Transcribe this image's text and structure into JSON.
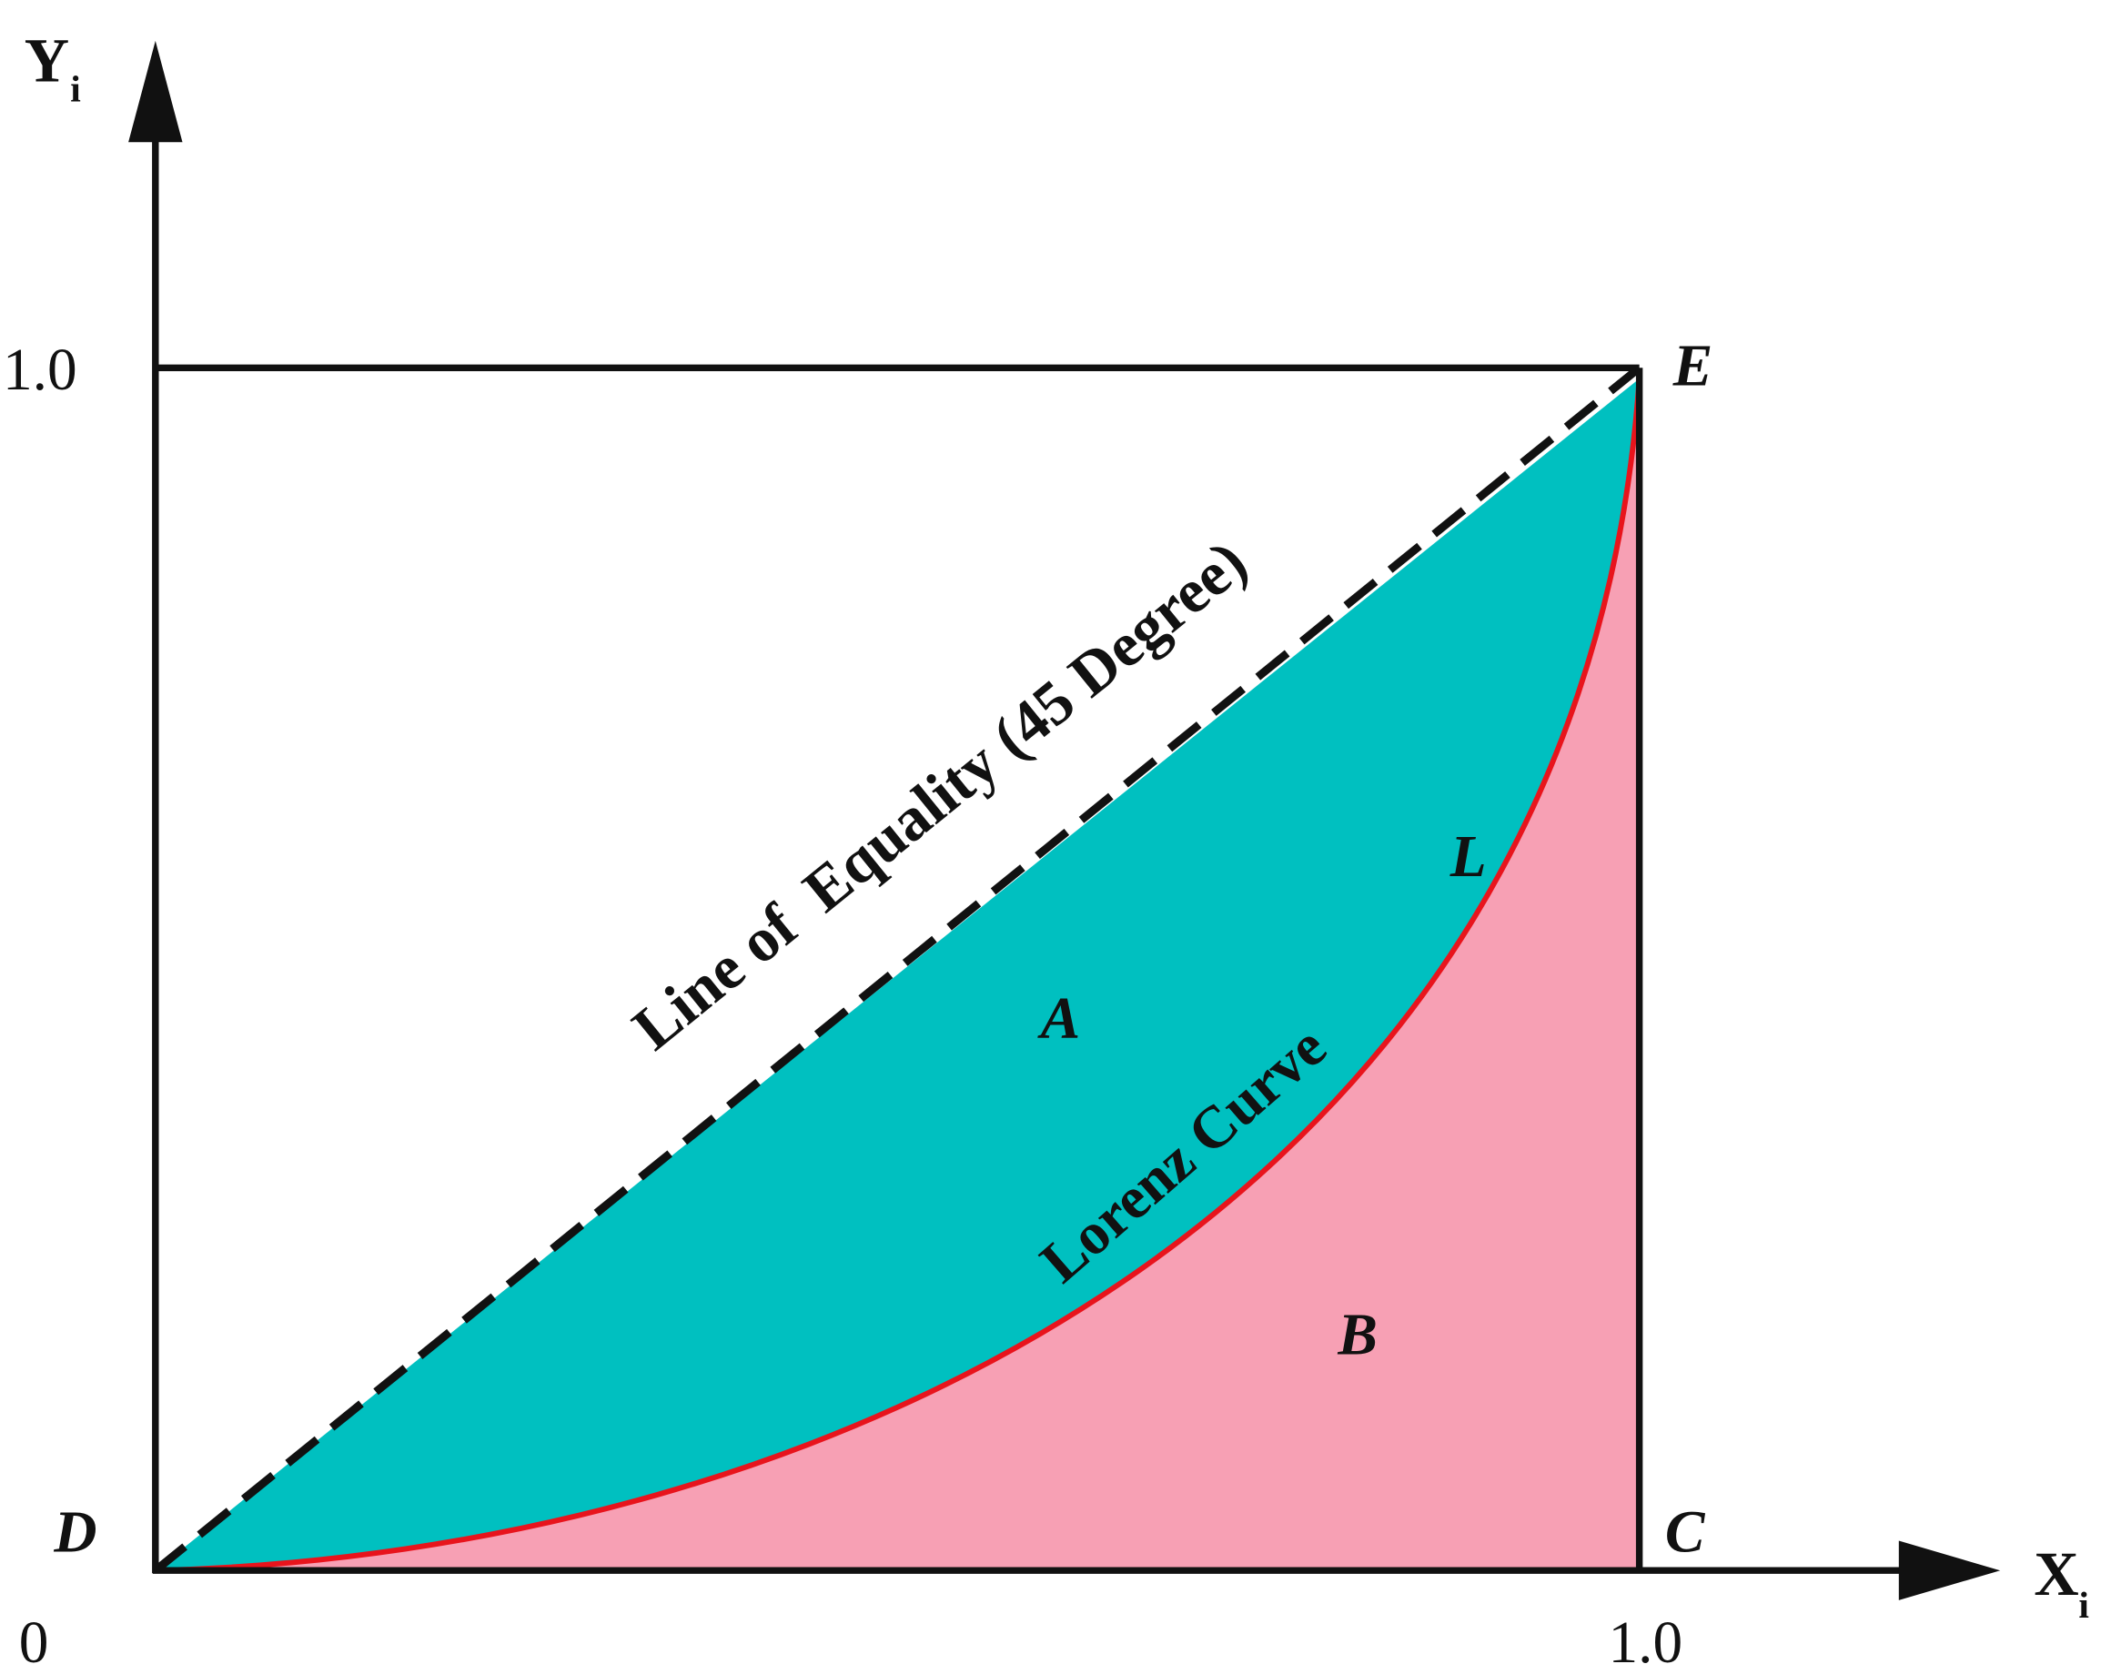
{
  "axes": {
    "y_label": "Y",
    "y_subscript": "i",
    "x_label": "X",
    "x_subscript": "i",
    "y_tick": "1.0",
    "x_tick": "1.0",
    "origin": "0"
  },
  "points": {
    "D": "D",
    "E": "E",
    "C": "C"
  },
  "regions": {
    "A": "A",
    "B": "B",
    "L": "L"
  },
  "labels": {
    "equality_line": "Line of  Equality (45 Degree)",
    "lorenz_curve": "Lorenz Curve"
  }
}
